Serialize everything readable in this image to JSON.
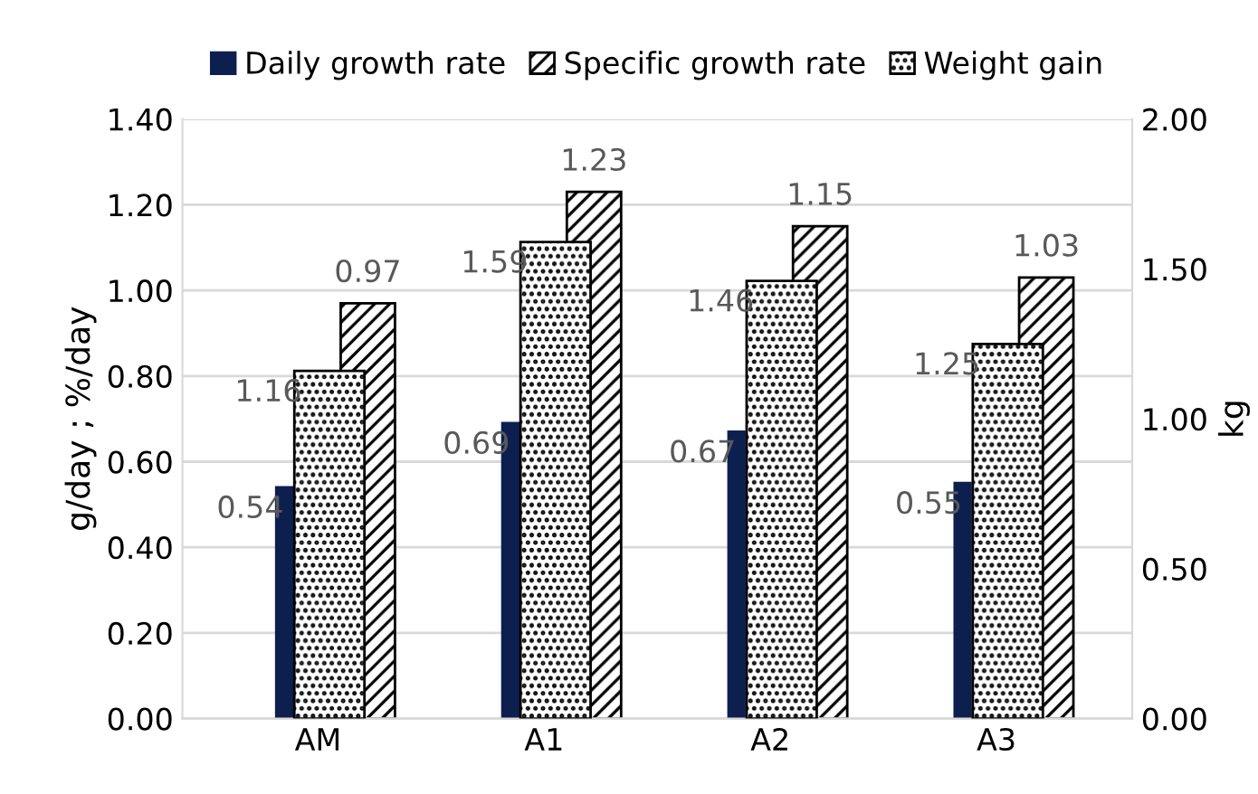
{
  "chart_data": {
    "type": "bar",
    "ylabel": "g/day ; %/day",
    "y2label": "kg",
    "categories": [
      "AM",
      "A1",
      "A2",
      "A3"
    ],
    "series": [
      {
        "name": "Daily growth rate",
        "color": "#0d1f4f",
        "values": [
          0.54,
          0.69,
          0.67,
          0.55
        ]
      },
      {
        "name": "Specific growth rate",
        "color": "#000000",
        "values": [
          0.97,
          1.23,
          1.15,
          1.03
        ]
      },
      {
        "name": "Weight gain",
        "color": "#000000",
        "values": [
          1.16,
          1.59,
          1.46,
          1.25
        ],
        "axis": "y2"
      }
    ],
    "ylim": [
      0,
      1.4
    ],
    "yticks": [
      {
        "value": 0,
        "label": "0.00"
      },
      {
        "value": 0.2,
        "label": "0.20"
      },
      {
        "value": 0.4,
        "label": "0.40"
      },
      {
        "value": 0.6,
        "label": "0.60"
      },
      {
        "value": 0.8,
        "label": "0.80"
      },
      {
        "value": 1.0,
        "label": "1.00"
      },
      {
        "value": 1.2,
        "label": "1.20"
      },
      {
        "value": 1.4,
        "label": "1.40"
      }
    ],
    "y2lim": [
      0,
      2
    ],
    "y2ticks": [
      {
        "value": 0,
        "label": "0.00"
      },
      {
        "value": 0.5,
        "label": "0.50"
      },
      {
        "value": 1.0,
        "label": "1.00"
      },
      {
        "value": 1.5,
        "label": "1.50"
      },
      {
        "value": 2.0,
        "label": "2.00"
      }
    ],
    "grid": "y",
    "legend": "top",
    "data_labels": true
  }
}
